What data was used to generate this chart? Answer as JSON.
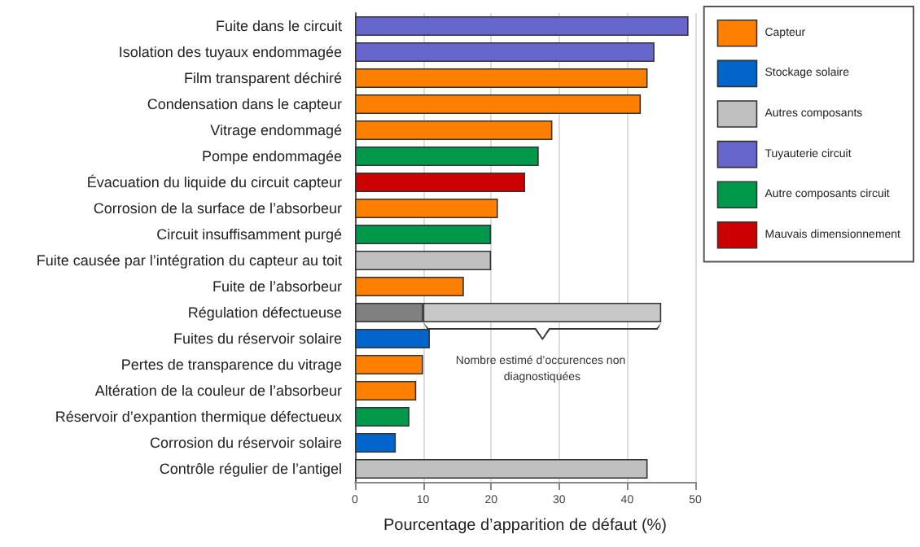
{
  "chart_data": {
    "type": "bar",
    "orientation": "horizontal",
    "stacked": true,
    "categories": [
      "Fuite dans le circuit",
      "Isolation des tuyaux endommagée",
      "Film transparent déchiré",
      "Condensation dans le capteur",
      "Vitrage endommagé",
      "Pompe endommagée",
      "Évacuation du liquide du circuit capteur",
      "Corrosion de la surface de l’absorbeur",
      "Circuit insuffisamment purgé",
      "Fuite causée par l’intégration du capteur au toit",
      "Fuite de l’absorbeur",
      "Régulation défectueuse",
      "Fuites du réservoir solaire",
      "Pertes de transparence du vitrage",
      "Altération de la couleur de l’absorbeur",
      "Réservoir d’expantion thermique défectueux",
      "Corrosion du réservoir solaire",
      "Contrôle régulier de l’antigel"
    ],
    "series": [
      {
        "name": "Capteur",
        "color": "#ff8000",
        "values": [
          null,
          null,
          43,
          42,
          29,
          null,
          null,
          21,
          null,
          null,
          16,
          null,
          null,
          10,
          9,
          null,
          null,
          null
        ]
      },
      {
        "name": "Stockage solaire",
        "color": "#0066cc",
        "values": [
          null,
          null,
          null,
          null,
          null,
          null,
          null,
          null,
          null,
          null,
          null,
          null,
          11,
          null,
          null,
          null,
          6,
          null
        ]
      },
      {
        "name": "Autres composants",
        "color": "#c0c0c0",
        "values": [
          null,
          null,
          null,
          null,
          null,
          null,
          null,
          null,
          null,
          20,
          null,
          null,
          null,
          null,
          null,
          null,
          null,
          43
        ]
      },
      {
        "name": "Tuyauterie circuit",
        "color": "#6666cc",
        "values": [
          49,
          44,
          null,
          null,
          null,
          null,
          null,
          null,
          null,
          null,
          null,
          null,
          null,
          null,
          null,
          null,
          null,
          null
        ]
      },
      {
        "name": "Autre composants circuit",
        "color": "#00994c",
        "values": [
          null,
          null,
          null,
          null,
          null,
          27,
          null,
          null,
          20,
          null,
          null,
          null,
          null,
          null,
          null,
          8,
          null,
          null
        ]
      },
      {
        "name": "Mauvais dimensionnement",
        "color": "#cc0000",
        "values": [
          null,
          null,
          null,
          null,
          null,
          null,
          25,
          null,
          null,
          null,
          null,
          null,
          null,
          null,
          null,
          null,
          null,
          null
        ]
      },
      {
        "color": "#808080",
        "values": [
          null,
          null,
          null,
          null,
          null,
          null,
          null,
          null,
          null,
          null,
          null,
          10,
          null,
          null,
          null,
          null,
          null,
          null
        ]
      },
      {
        "color": "#c8c8c8",
        "values": [
          null,
          null,
          null,
          null,
          null,
          null,
          null,
          null,
          null,
          null,
          null,
          35,
          null,
          null,
          null,
          null,
          null,
          null
        ]
      }
    ],
    "xlim": [
      0,
      50
    ],
    "xticks": [
      0,
      10,
      20,
      30,
      40,
      50
    ],
    "xlabel": "Pourcentage d’apparition de défaut (%)",
    "grid": "x",
    "legend": "right",
    "annotations": [
      {
        "text": "Nombre estimé d’occurences non diagnostiquées",
        "x": 27.5,
        "y": "Régulation défectueuse"
      }
    ]
  }
}
